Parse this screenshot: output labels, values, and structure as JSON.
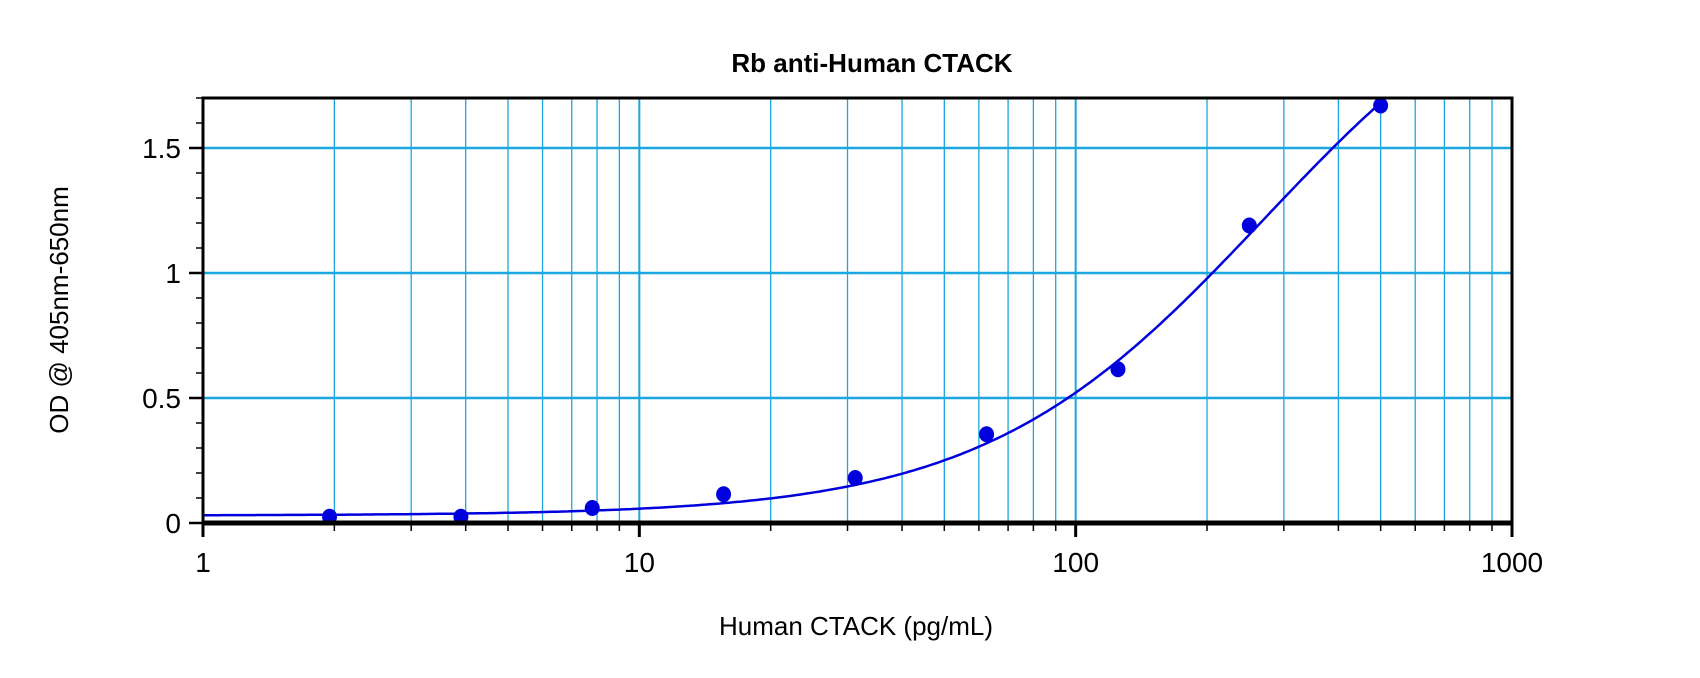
{
  "chart_data": {
    "type": "scatter",
    "title": "Rb anti-Human CTACK",
    "xlabel": "Human CTACK (pg/mL)",
    "ylabel": "OD @ 405nm-650nm",
    "xscale": "log",
    "xlim": [
      1,
      1000
    ],
    "ylim": [
      0,
      1.7
    ],
    "xticks": [
      1,
      10,
      100,
      1000
    ],
    "xtick_labels": [
      "1",
      "10",
      "100",
      "1000"
    ],
    "yticks": [
      0,
      0.5,
      1,
      1.5
    ],
    "ytick_labels": [
      "0",
      "0.5",
      "1",
      "1.5"
    ],
    "grid": true,
    "series": [
      {
        "name": "Standards",
        "x": [
          1.95,
          3.9,
          7.8,
          15.6,
          31.25,
          62.5,
          125,
          250,
          500
        ],
        "y": [
          0.025,
          0.025,
          0.06,
          0.115,
          0.18,
          0.355,
          0.615,
          1.19,
          1.67
        ],
        "color": "#0000dd"
      }
    ],
    "fit": {
      "type": "4PL",
      "A": 0.03,
      "B": 1.35,
      "C": 270,
      "D": 2.4,
      "color": "#0000dd"
    },
    "grid_color": "#1aa6e0"
  }
}
